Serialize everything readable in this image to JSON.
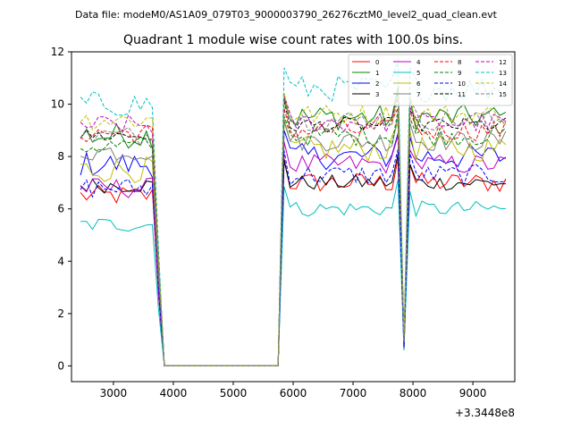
{
  "chart_data": {
    "type": "line",
    "supertitle": "Data file: modeM0/AS1A09_079T03_9000003790_26276cztM0_level2_quad_clean.evt",
    "title": "Quadrant 1 module wise count rates with 100.0s bins.",
    "xlabel": "",
    "ylabel": "",
    "x_offset_label": "+3.3448e8",
    "xlim": [
      2300,
      9700
    ],
    "ylim": [
      -0.6,
      12.0
    ],
    "xticks": [
      3000,
      4000,
      5000,
      6000,
      7000,
      8000,
      9000
    ],
    "yticks": [
      0,
      2,
      4,
      6,
      8,
      10,
      12
    ],
    "grid": false,
    "legend_position": "top-right",
    "legend_columns": 4,
    "bin_seconds": 100,
    "x_start": 2450,
    "x_step": 100,
    "x_count": 72,
    "gap_segments": [
      {
        "from": 3750,
        "to": 3850,
        "note": "drop"
      },
      {
        "from": 3850,
        "to": 5750,
        "value": 0
      },
      {
        "from": 7850,
        "to": 7850,
        "note": "dip"
      }
    ],
    "series": [
      {
        "name": "0",
        "color": "#ff0000",
        "dash": "solid",
        "pre": 6.5,
        "post": 7.0,
        "amp": 0.4,
        "dip": 0.6
      },
      {
        "name": "1",
        "color": "#008000",
        "dash": "solid",
        "pre": 8.8,
        "post": 9.5,
        "amp": 0.5,
        "dip": 0.9
      },
      {
        "name": "2",
        "color": "#0000ff",
        "dash": "solid",
        "pre": 7.7,
        "post": 8.0,
        "amp": 0.5,
        "dip": 0.8
      },
      {
        "name": "3",
        "color": "#000000",
        "dash": "solid",
        "pre": 6.9,
        "post": 7.0,
        "amp": 0.3,
        "dip": 0.7
      },
      {
        "name": "4",
        "color": "#bf00bf",
        "dash": "solid",
        "pre": 6.8,
        "post": 7.7,
        "amp": 0.4,
        "dip": 0.8
      },
      {
        "name": "5",
        "color": "#00bfbf",
        "dash": "solid",
        "pre": 5.4,
        "post": 6.0,
        "amp": 0.3,
        "dip": 0.6
      },
      {
        "name": "6",
        "color": "#bfbf00",
        "dash": "solid",
        "pre": 7.5,
        "post": 8.3,
        "amp": 0.5,
        "dip": 0.8
      },
      {
        "name": "7",
        "color": "#808080",
        "dash": "solid",
        "pre": 8.2,
        "post": 8.6,
        "amp": 0.4,
        "dip": 0.9
      },
      {
        "name": "8",
        "color": "#ff0000",
        "dash": "dashed",
        "pre": 8.9,
        "post": 9.0,
        "amp": 0.4,
        "dip": 0.8
      },
      {
        "name": "9",
        "color": "#008000",
        "dash": "dashed",
        "pre": 8.4,
        "post": 8.8,
        "amp": 0.4,
        "dip": 0.9
      },
      {
        "name": "10",
        "color": "#0000ff",
        "dash": "dashed",
        "pre": 6.8,
        "post": 7.3,
        "amp": 0.4,
        "dip": 0.7
      },
      {
        "name": "11",
        "color": "#000000",
        "dash": "dashed",
        "pre": 8.8,
        "post": 9.2,
        "amp": 0.3,
        "dip": 1.0
      },
      {
        "name": "12",
        "color": "#bf00bf",
        "dash": "dashed",
        "pre": 9.2,
        "post": 9.3,
        "amp": 0.4,
        "dip": 0.9
      },
      {
        "name": "13",
        "color": "#00bfbf",
        "dash": "dashed",
        "pre": 10.0,
        "post": 10.6,
        "amp": 0.5,
        "dip": 1.0
      },
      {
        "name": "14",
        "color": "#bfbf00",
        "dash": "dashed",
        "pre": 9.4,
        "post": 9.6,
        "amp": 0.4,
        "dip": 1.0
      },
      {
        "name": "15",
        "color": "#808080",
        "dash": "dashed",
        "pre": 8.8,
        "post": 9.4,
        "amp": 0.4,
        "dip": 0.9
      }
    ]
  }
}
